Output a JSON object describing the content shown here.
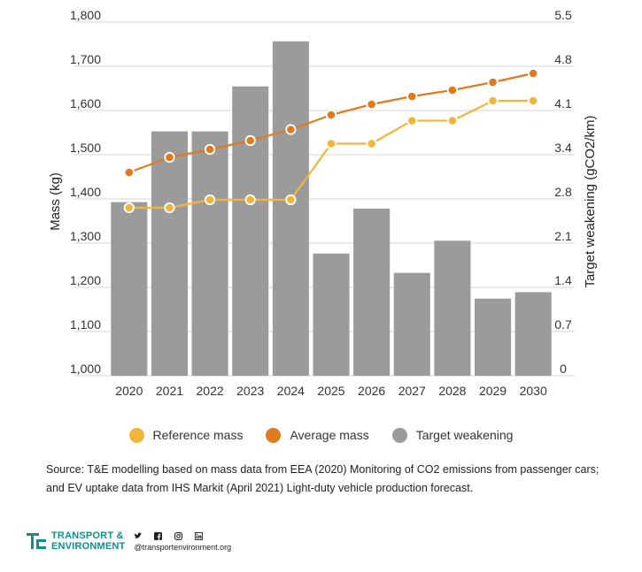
{
  "chart_data": {
    "type": "bar+line",
    "categories": [
      "2020",
      "2021",
      "2022",
      "2023",
      "2024",
      "2025",
      "2026",
      "2027",
      "2028",
      "2029",
      "2030"
    ],
    "left_axis": {
      "label": "Mass (kg)",
      "ylim": [
        1000,
        1800
      ],
      "ticks": [
        "1,000",
        "1,100",
        "1,200",
        "1,300",
        "1,400",
        "1,500",
        "1,600",
        "1,700",
        "1,800"
      ]
    },
    "right_axis": {
      "label": "Target weakening (gCO2/km)",
      "ylim": [
        0,
        5.5
      ],
      "ticks": [
        "0",
        "0.7",
        "1.4",
        "2.1",
        "2.8",
        "3.4",
        "4.1",
        "4.8",
        "5.5"
      ]
    },
    "series": [
      {
        "name": "Target weakening",
        "kind": "bar",
        "axis": "right",
        "color": "#9b9b9b",
        "values": [
          2.7,
          3.8,
          3.8,
          4.5,
          5.2,
          1.9,
          2.6,
          1.6,
          2.1,
          1.2,
          1.3
        ]
      },
      {
        "name": "Reference mass",
        "kind": "line",
        "axis": "left",
        "color": "#f0b63c",
        "values": [
          1380,
          1380,
          1398,
          1398,
          1398,
          1525,
          1525,
          1577,
          1577,
          1622,
          1622
        ]
      },
      {
        "name": "Average mass",
        "kind": "line",
        "axis": "left",
        "color": "#e07a1f",
        "values": [
          1460,
          1494,
          1512,
          1532,
          1557,
          1590,
          1614,
          1632,
          1646,
          1664,
          1684
        ]
      }
    ]
  },
  "legend": [
    {
      "label": "Reference mass",
      "color": "#f0b63c"
    },
    {
      "label": "Average mass",
      "color": "#e07a1f"
    },
    {
      "label": "Target weakening",
      "color": "#9b9b9b"
    }
  ],
  "source_line1": "Source: T&E modelling based on mass data from EEA (2020) Monitoring of CO2 emissions from passenger cars;",
  "source_line2": "and EV uptake data from IHS Markit (April 2021) Light-duty vehicle production forecast.",
  "logo": {
    "line1": "TRANSPORT &",
    "line2": "ENVIRONMENT",
    "handle": "@transportenvironment.org",
    "brand_color": "#0f8f8c"
  }
}
